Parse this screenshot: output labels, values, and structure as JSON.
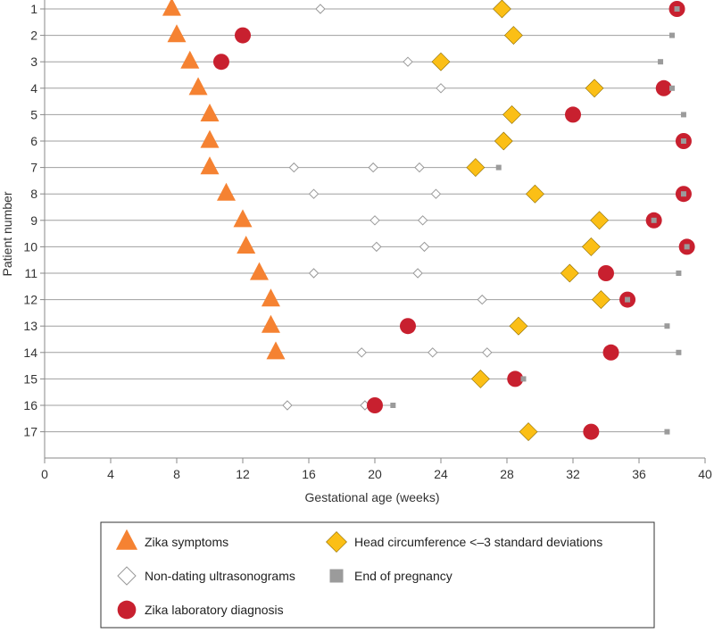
{
  "chart_data": {
    "type": "scatter",
    "xlabel": "Gestational age (weeks)",
    "ylabel": "Patient number",
    "xlim": [
      0,
      40
    ],
    "x_ticks": [
      0,
      4,
      8,
      12,
      16,
      20,
      24,
      28,
      32,
      36,
      40
    ],
    "patients": [
      1,
      2,
      3,
      4,
      5,
      6,
      7,
      8,
      9,
      10,
      11,
      12,
      13,
      14,
      15,
      16,
      17
    ],
    "grid": false,
    "legend_placement": "bottom",
    "series": [
      {
        "name": "Zika symptoms",
        "marker": "triangle",
        "color": "#F58232",
        "points": [
          [
            7.7,
            1
          ],
          [
            8.0,
            2
          ],
          [
            8.8,
            3
          ],
          [
            9.3,
            4
          ],
          [
            10.0,
            5
          ],
          [
            10.0,
            6
          ],
          [
            10.0,
            7
          ],
          [
            11.0,
            8
          ],
          [
            12.0,
            9
          ],
          [
            12.2,
            10
          ],
          [
            13.0,
            11
          ],
          [
            13.7,
            12
          ],
          [
            13.7,
            13
          ],
          [
            14.0,
            14
          ]
        ]
      },
      {
        "name": "Head circumference <–3 standard deviations",
        "marker": "diamond",
        "color": "#FBBF16",
        "points": [
          [
            27.7,
            1
          ],
          [
            28.4,
            2
          ],
          [
            24.0,
            3
          ],
          [
            33.3,
            4
          ],
          [
            28.3,
            5
          ],
          [
            27.8,
            6
          ],
          [
            26.1,
            7
          ],
          [
            29.7,
            8
          ],
          [
            33.6,
            9
          ],
          [
            33.1,
            10
          ],
          [
            31.8,
            11
          ],
          [
            33.7,
            12
          ],
          [
            28.7,
            13
          ],
          [
            26.4,
            15
          ],
          [
            29.3,
            17
          ]
        ]
      },
      {
        "name": "Non-dating ultrasonograms",
        "marker": "hollow-diamond",
        "color": "#999999",
        "points": [
          [
            16.7,
            1
          ],
          [
            22.0,
            3
          ],
          [
            24.0,
            4
          ],
          [
            15.1,
            7
          ],
          [
            19.9,
            7
          ],
          [
            22.7,
            7
          ],
          [
            16.3,
            8
          ],
          [
            23.7,
            8
          ],
          [
            20.0,
            9
          ],
          [
            22.9,
            9
          ],
          [
            20.1,
            10
          ],
          [
            23.0,
            10
          ],
          [
            16.3,
            11
          ],
          [
            22.6,
            11
          ],
          [
            26.5,
            12
          ],
          [
            19.2,
            14
          ],
          [
            23.5,
            14
          ],
          [
            26.8,
            14
          ],
          [
            14.7,
            16
          ],
          [
            19.4,
            16
          ]
        ]
      },
      {
        "name": "End of pregnancy",
        "marker": "square",
        "color": "#9B9B9B",
        "points": [
          [
            38.3,
            1
          ],
          [
            38.0,
            2
          ],
          [
            37.3,
            3
          ],
          [
            38.0,
            4
          ],
          [
            38.7,
            5
          ],
          [
            38.7,
            6
          ],
          [
            27.5,
            7
          ],
          [
            38.7,
            8
          ],
          [
            36.9,
            9
          ],
          [
            38.9,
            10
          ],
          [
            38.4,
            11
          ],
          [
            35.3,
            12
          ],
          [
            37.7,
            13
          ],
          [
            38.4,
            14
          ],
          [
            29.0,
            15
          ],
          [
            21.1,
            16
          ],
          [
            37.7,
            17
          ]
        ]
      },
      {
        "name": "Zika laboratory diagnosis",
        "marker": "circle",
        "color": "#C8202F",
        "points": [
          [
            38.3,
            1
          ],
          [
            12.0,
            2
          ],
          [
            10.7,
            3
          ],
          [
            37.5,
            4
          ],
          [
            32.0,
            5
          ],
          [
            38.7,
            6
          ],
          [
            38.7,
            8
          ],
          [
            36.9,
            9
          ],
          [
            38.9,
            10
          ],
          [
            34.0,
            11
          ],
          [
            35.3,
            12
          ],
          [
            22.0,
            13
          ],
          [
            34.3,
            14
          ],
          [
            28.5,
            15
          ],
          [
            20.0,
            16
          ],
          [
            33.1,
            17
          ]
        ]
      }
    ],
    "legend": {
      "rows": [
        [
          "Zika symptoms",
          "Head circumference <–3 standard deviations"
        ],
        [
          "Non-dating ultrasonograms",
          "End of pregnancy"
        ],
        [
          "Zika laboratory diagnosis"
        ]
      ]
    }
  }
}
